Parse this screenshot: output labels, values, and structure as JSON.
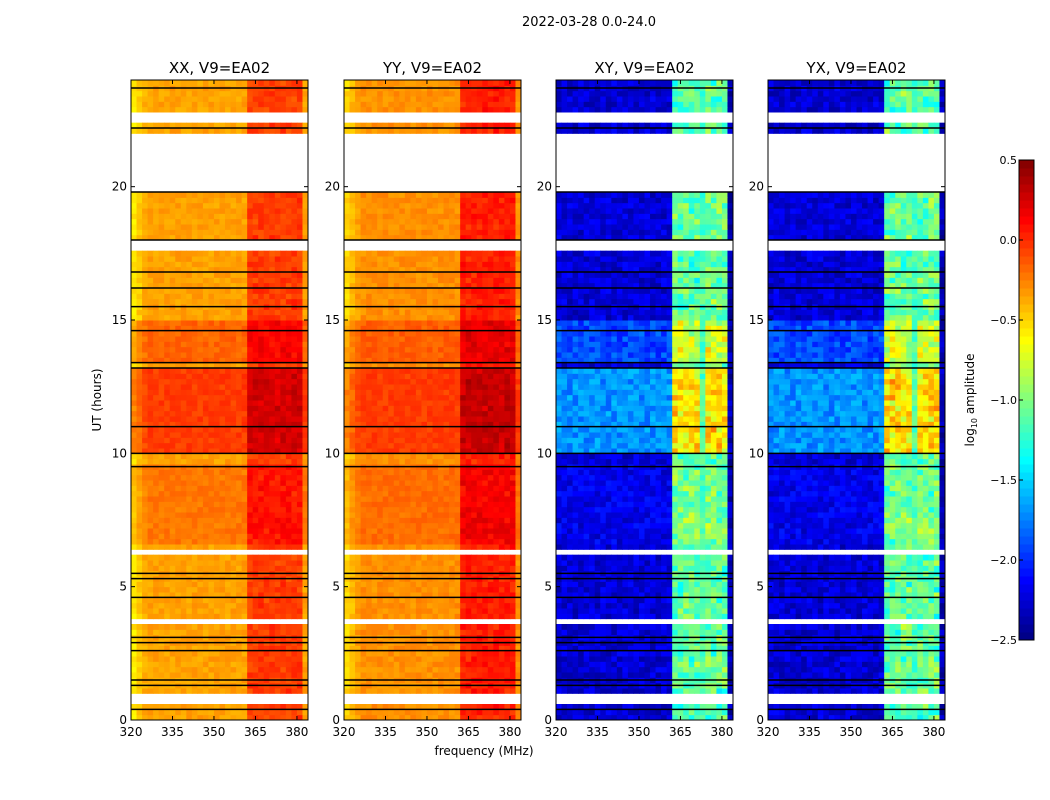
{
  "chart_data": {
    "type": "heatmap",
    "title": "2022-03-28 0.0-24.0",
    "xlabel": "frequency (MHz)",
    "ylabel": "UT (hours)",
    "xlim": [
      320,
      384
    ],
    "ylim": [
      0,
      24
    ],
    "xticks": [
      320,
      335,
      350,
      365,
      380
    ],
    "yticks": [
      0,
      5,
      10,
      15,
      20
    ],
    "flagged_hours": [
      [
        22.5,
        22.8
      ],
      [
        19.9,
        22.0
      ],
      [
        17.7,
        18.1
      ],
      [
        9.75,
        9.9
      ],
      [
        6.25,
        6.5
      ],
      [
        3.55,
        3.75
      ],
      [
        0.55,
        1.1
      ]
    ],
    "black_lines_hours": [
      0.4,
      1.3,
      1.5,
      2.6,
      2.9,
      3.1,
      4.6,
      5.3,
      5.5,
      9.5,
      10.0,
      11.0,
      13.2,
      13.4,
      14.6,
      15.5,
      16.2,
      16.8,
      18.0,
      19.8,
      22.2,
      23.7
    ],
    "band_mhz": [
      362,
      381
    ],
    "panels": [
      {
        "title": "XX, V9=EA02",
        "base": -0.35,
        "active_boost": 0.3,
        "band_boost": 0.35
      },
      {
        "title": "YY, V9=EA02",
        "base": -0.3,
        "active_boost": 0.25,
        "band_boost": 0.4
      },
      {
        "title": "XY, V9=EA02",
        "base": -2.25,
        "active_boost": 0.55,
        "band_boost": 1.5
      },
      {
        "title": "YX, V9=EA02",
        "base": -2.25,
        "active_boost": 0.55,
        "band_boost": 1.5
      }
    ],
    "colorbar": {
      "label": "log10 amplitude",
      "label_main": "log",
      "label_sub": "10",
      "label_rest": " amplitude",
      "range": [
        -2.5,
        0.5
      ],
      "ticks": [
        "0.5",
        "0.0",
        "−0.5",
        "−1.0",
        "−1.5",
        "−2.0",
        "−2.5"
      ],
      "colormap": "jet"
    }
  }
}
